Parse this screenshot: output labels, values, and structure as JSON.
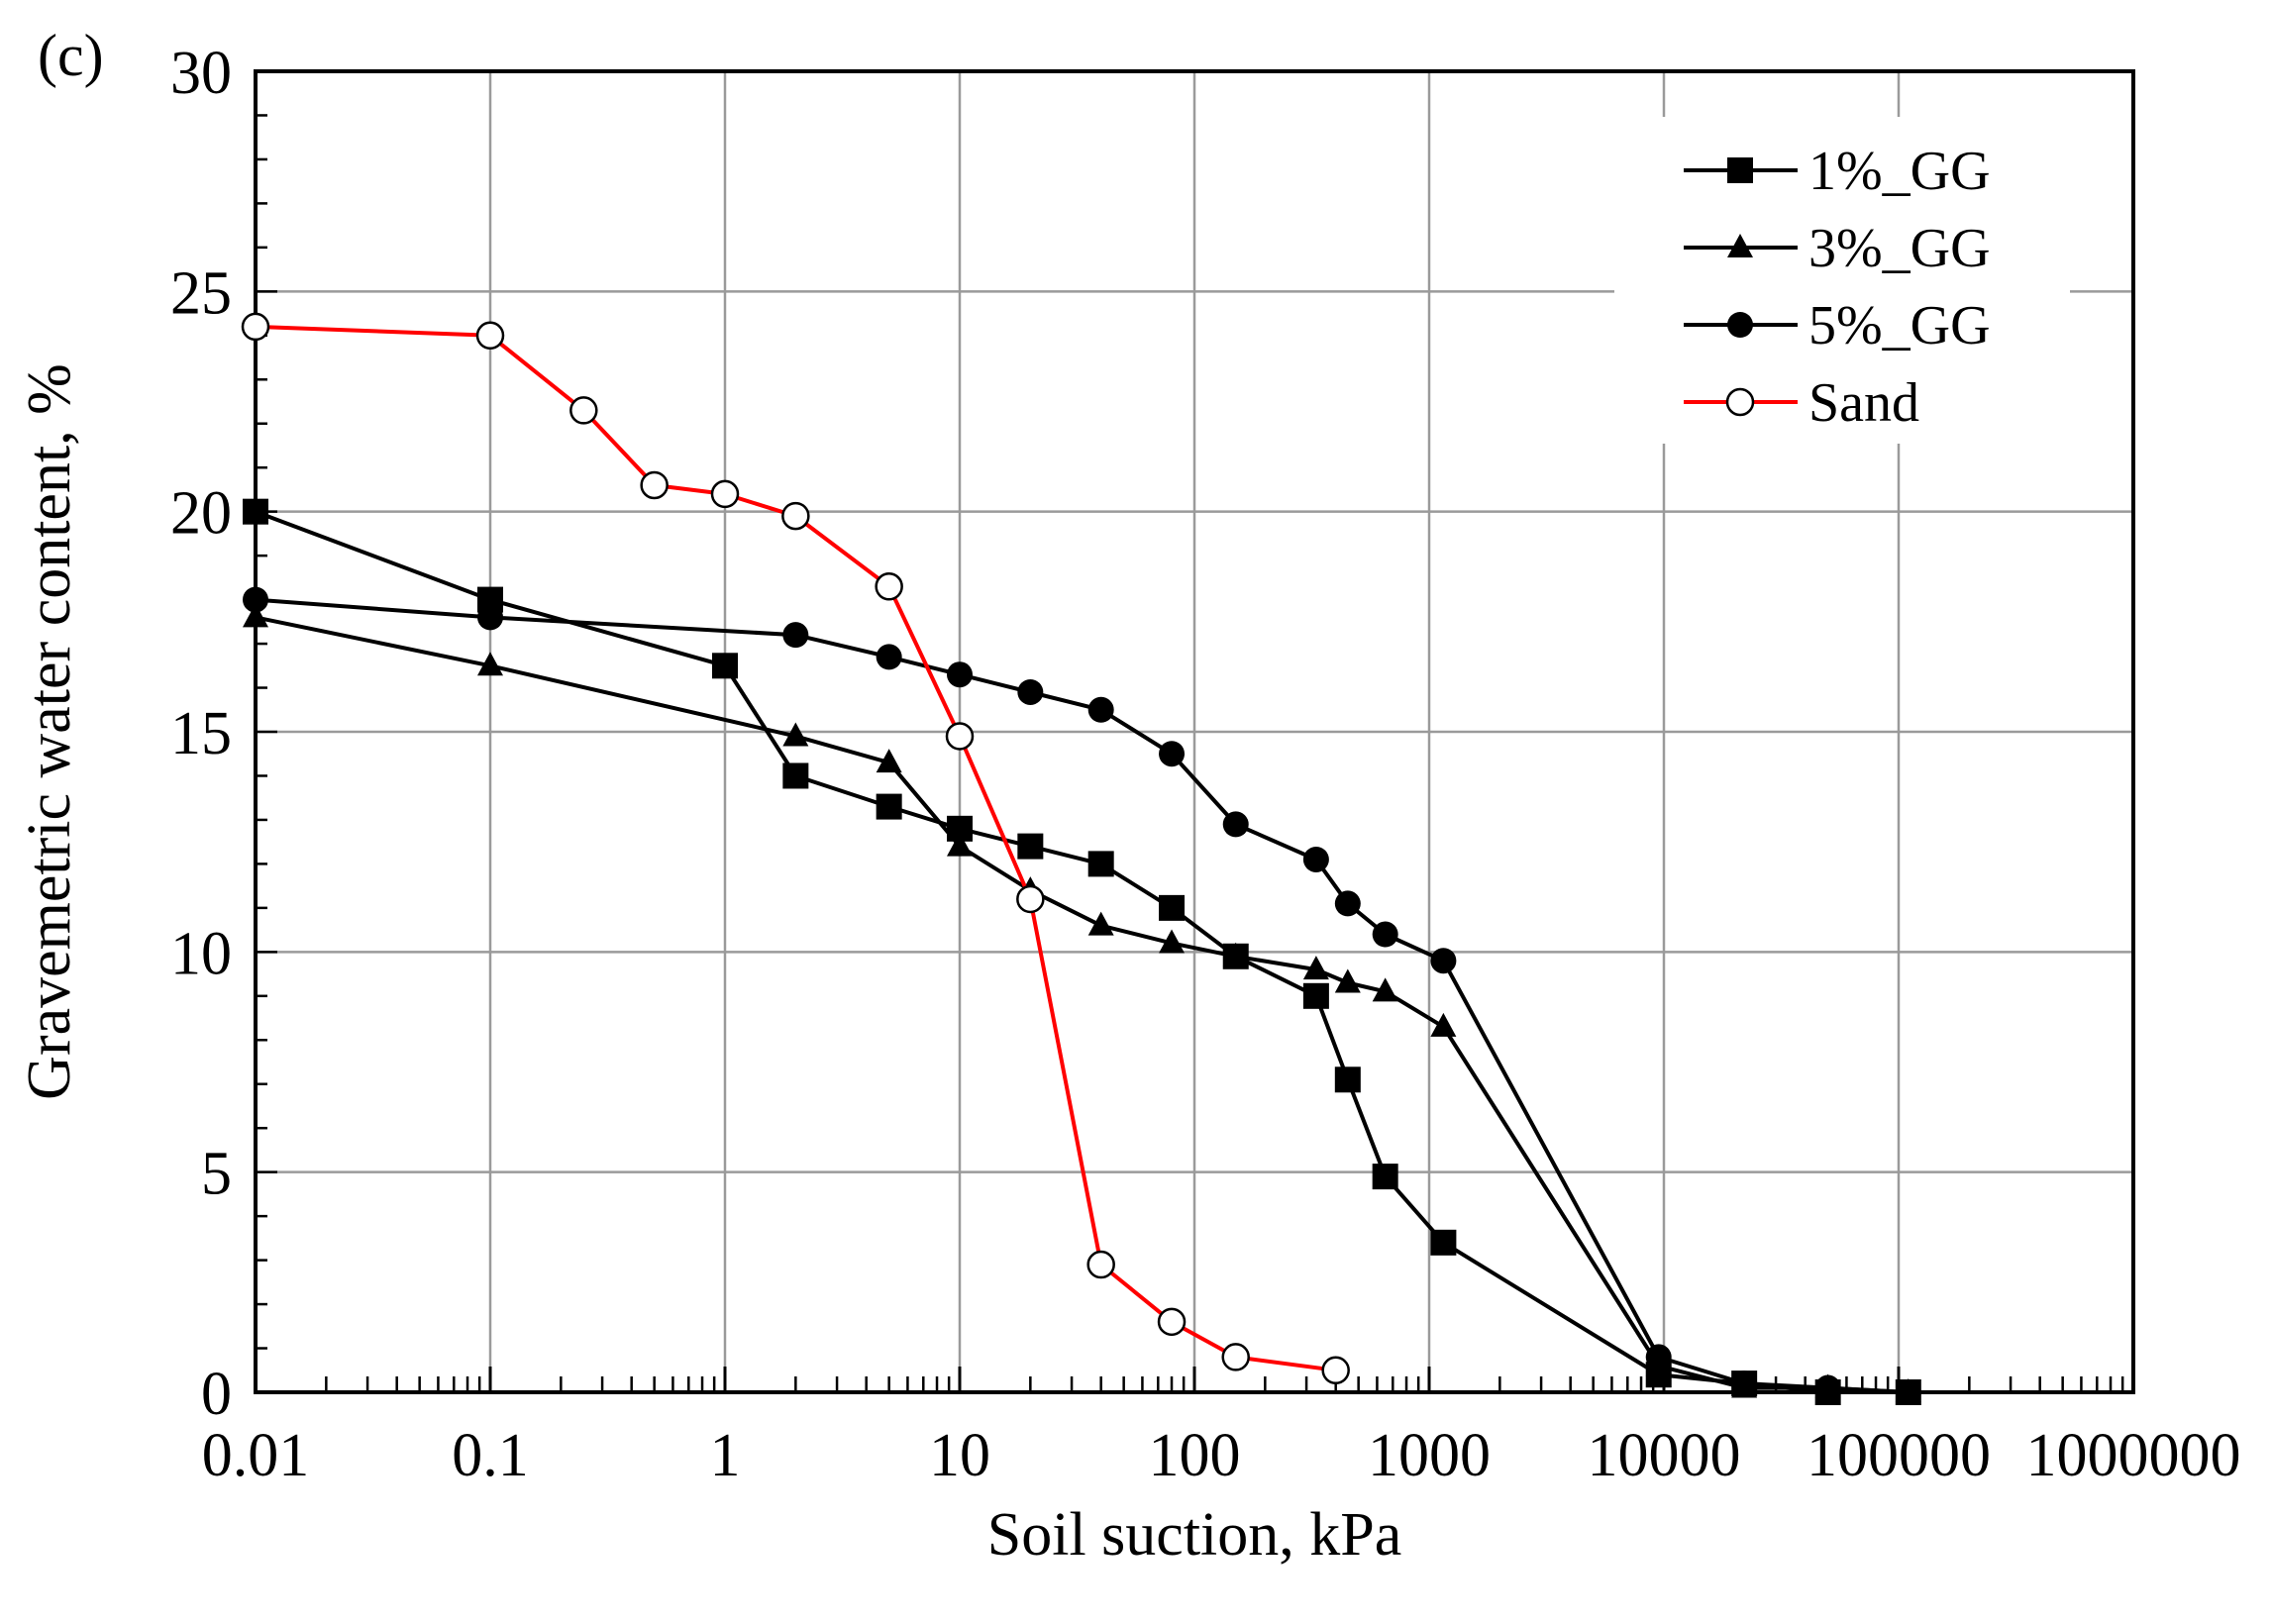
{
  "chart_data": {
    "type": "line",
    "panel_label": "(c)",
    "xlabel": "Soil suction, kPa",
    "ylabel": "Gravemetric water content, %",
    "xscale": "log",
    "xlim": [
      0.01,
      1000000
    ],
    "ylim": [
      0,
      30
    ],
    "grid": true,
    "legend_position": "top-right",
    "x_tick_labels": [
      "0.01",
      "0.1",
      "1",
      "10",
      "100",
      "1000",
      "10000",
      "100000",
      "1000000"
    ],
    "y_tick_labels": [
      "0",
      "5",
      "10",
      "15",
      "20",
      "25",
      "30"
    ],
    "series": [
      {
        "name": "1%_GG",
        "marker": "square",
        "color": "#000000",
        "x": [
          0.01,
          0.1,
          1,
          2,
          5,
          10,
          20,
          40,
          80,
          150,
          330,
          450,
          650,
          1150,
          9500,
          22000,
          50000,
          110000
        ],
        "y": [
          20.0,
          18.0,
          16.5,
          14.0,
          13.3,
          12.8,
          12.4,
          12.0,
          11.0,
          9.9,
          9.0,
          7.1,
          4.9,
          3.4,
          0.4,
          0.2,
          0.0,
          0.0
        ]
      },
      {
        "name": "3%_GG",
        "marker": "triangle",
        "color": "#000000",
        "x": [
          0.01,
          0.1,
          2,
          5,
          10,
          20,
          40,
          80,
          150,
          330,
          450,
          650,
          1150,
          9500,
          22000,
          50000,
          110000
        ],
        "y": [
          17.6,
          16.5,
          14.9,
          14.3,
          12.4,
          11.4,
          10.6,
          10.2,
          9.9,
          9.6,
          9.3,
          9.1,
          8.3,
          0.6,
          0.1,
          0.1,
          0.0
        ]
      },
      {
        "name": "5%_GG",
        "marker": "circle",
        "color": "#000000",
        "x": [
          0.01,
          0.1,
          2,
          5,
          10,
          20,
          40,
          80,
          150,
          330,
          450,
          650,
          1150,
          9500,
          22000,
          50000,
          110000
        ],
        "y": [
          18.0,
          17.6,
          17.2,
          16.7,
          16.3,
          15.9,
          15.5,
          14.5,
          12.9,
          12.1,
          11.1,
          10.4,
          9.8,
          0.8,
          0.2,
          0.1,
          0.0
        ]
      },
      {
        "name": "Sand",
        "marker": "open-circle",
        "color": "#ff0000",
        "x": [
          0.01,
          0.1,
          0.25,
          0.5,
          1,
          2,
          5,
          10,
          20,
          40,
          80,
          150,
          400
        ],
        "y": [
          24.2,
          24.0,
          22.3,
          20.6,
          20.4,
          19.9,
          18.3,
          14.9,
          11.2,
          2.9,
          1.6,
          0.8,
          0.5
        ]
      }
    ]
  }
}
